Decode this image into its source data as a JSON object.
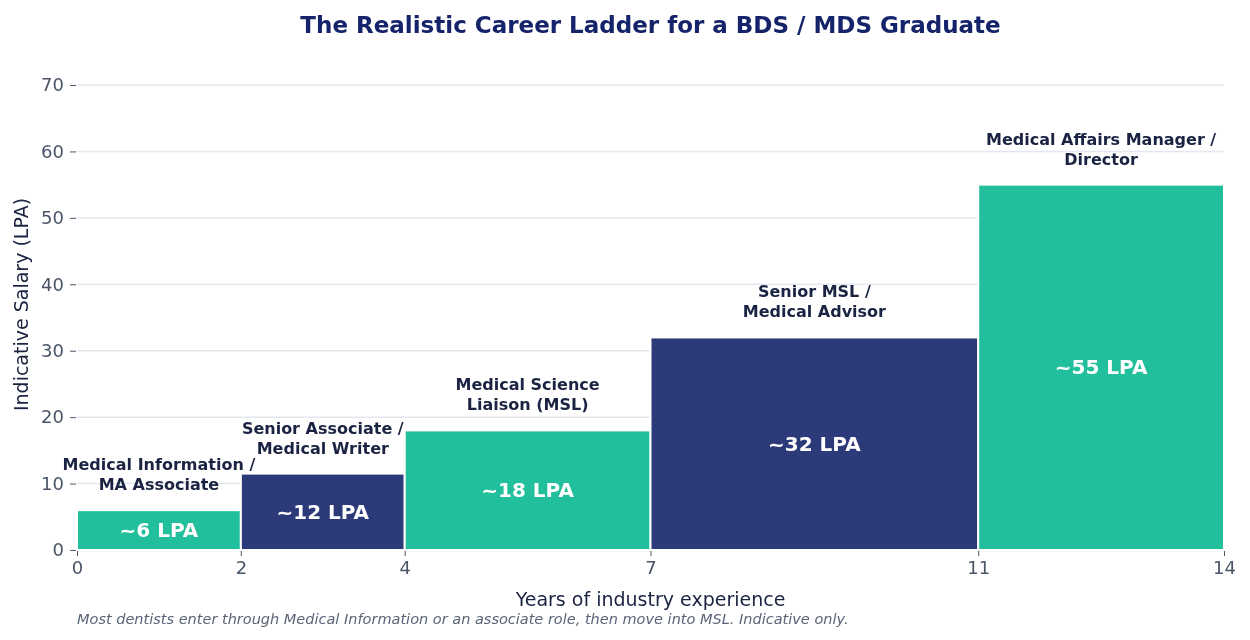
{
  "chart_data": {
    "type": "histogram",
    "title": "The Realistic Career Ladder for a BDS / MDS Graduate",
    "xlabel": "Years of industry experience",
    "ylabel": "Indicative Salary (LPA)",
    "bins": [
      0,
      2,
      4,
      7,
      11,
      14
    ],
    "values": [
      6,
      11.5,
      18,
      32,
      55
    ],
    "colors": [
      "#21bf9b",
      "#2d3a79",
      "#21bf9b",
      "#2d3a79",
      "#21bf9b"
    ],
    "value_labels": [
      "~6 LPA",
      "~12 LPA",
      "~18 LPA",
      "~32 LPA",
      "~55 LPA"
    ],
    "xlim": [
      0,
      14
    ],
    "xticks": [
      0,
      2,
      4,
      7,
      11,
      14
    ],
    "ylim": [
      0,
      70
    ],
    "yticks": [
      0,
      10,
      20,
      30,
      40,
      50,
      60,
      70
    ],
    "grid": "y",
    "annotations": [
      {
        "text": "Medical Information /\nMA Associate",
        "x": 1,
        "y": 6
      },
      {
        "text": "Senior Associate /\nMedical Writer",
        "x": 3,
        "y": 11.5
      },
      {
        "text": "Medical Science\nLiaison (MSL)",
        "x": 5.5,
        "y": 18
      },
      {
        "text": "Senior MSL /\nMedical Advisor",
        "x": 9,
        "y": 32
      },
      {
        "text": "Medical Affairs Manager /\nDirector",
        "x": 12.5,
        "y": 55
      },
      "Most dentists enter through Medical Information or an associate role, then move into MSL. Indicative only."
    ]
  }
}
